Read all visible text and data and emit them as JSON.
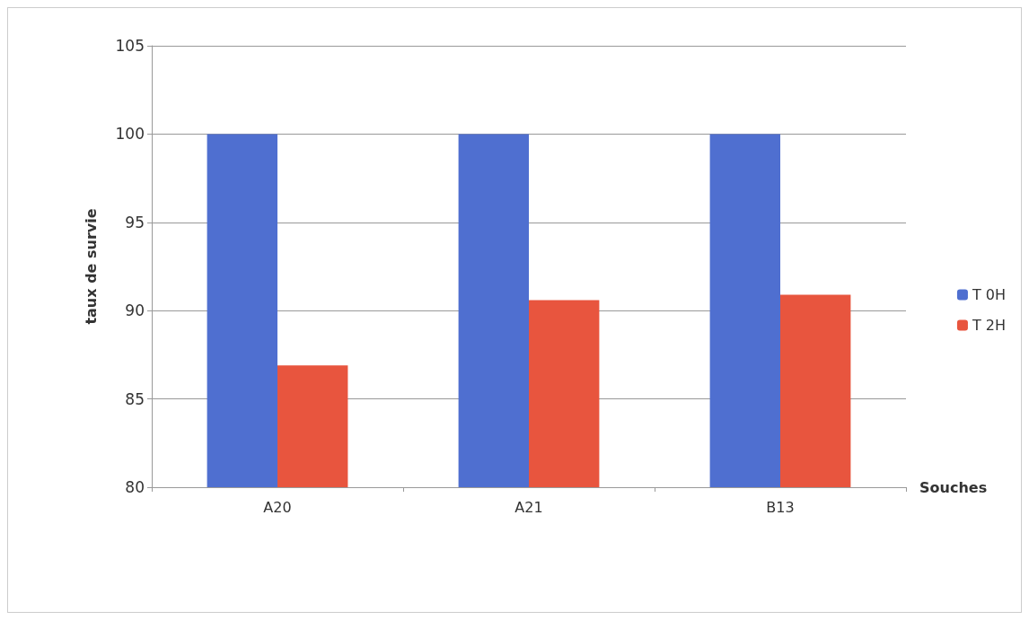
{
  "chart_data": {
    "type": "bar",
    "xlabel": "Souches",
    "ylabel": "taux de survie",
    "categories": [
      "A20",
      "A21",
      "B13"
    ],
    "series": [
      {
        "name": "T 0H",
        "color": "#4f6fd0",
        "values": [
          100,
          100,
          100
        ]
      },
      {
        "name": "T 2H",
        "color": "#e8553e",
        "values": [
          86.9,
          90.6,
          90.9
        ]
      }
    ],
    "ylim": [
      80,
      105
    ],
    "yticks": [
      80,
      85,
      90,
      95,
      100,
      105
    ],
    "grid": "y",
    "legend": "right"
  }
}
